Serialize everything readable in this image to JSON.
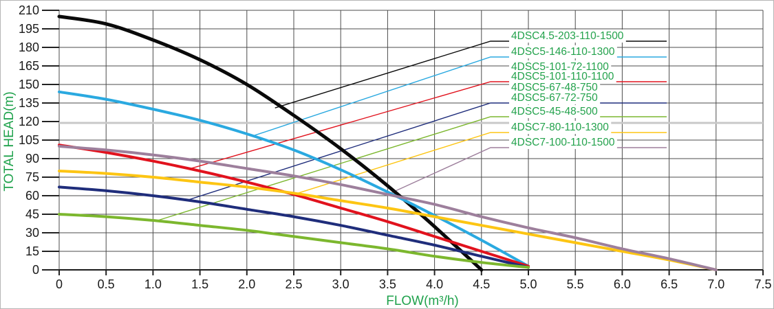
{
  "chart_data": {
    "type": "line",
    "xlabel": "FLOW(m³/h)",
    "ylabel": "TOTAL HEAD(m)",
    "axis_title_color": "#1fa24c",
    "xlim": [
      0,
      7.5
    ],
    "ylim": [
      0,
      210
    ],
    "grid": "on",
    "grid_color": "#4b4b4b",
    "x_tick_labels": [
      "0",
      "0.5",
      "1.0",
      "1.5",
      "2.0",
      "2.5",
      "3.0",
      "3.5",
      "4.0",
      "4.5",
      "5.0",
      "5.5",
      "6.0",
      "6.5",
      "7.0",
      "7.5"
    ],
    "y_tick_labels": [
      "0",
      "15",
      "30",
      "45",
      "60",
      "75",
      "90",
      "105",
      "120",
      "135",
      "150",
      "165",
      "180",
      "195",
      "210"
    ],
    "y_tick_step": 15,
    "x_tick_step": 0.5,
    "gray_line_head": 119,
    "gray_line_color": "#c8c8c8",
    "flow_step": 0.5,
    "series": [
      {
        "name": "4DSC4.5-203-110-1500",
        "color": "#0a0a0a",
        "width": 5,
        "draw": true,
        "heads": [
          205,
          199,
          186,
          170,
          150,
          125,
          98,
          68,
          35,
          0
        ]
      },
      {
        "name": "4DSC5-146-110-1300",
        "color": "#2aa9e0",
        "width": 4,
        "draw": true,
        "heads": [
          144,
          138,
          130,
          121,
          110,
          97,
          81,
          63,
          44,
          24,
          3
        ]
      },
      {
        "name": "4DSC5-101-72-1100",
        "color": "#e1121d",
        "width": 4,
        "draw": false,
        "heads": [
          101,
          95,
          88,
          80,
          71,
          61,
          50,
          39,
          27,
          15,
          3
        ]
      },
      {
        "name": "4DSC5-101-110-1100",
        "color": "#e1121d",
        "width": 4,
        "draw": true,
        "heads": [
          101,
          95,
          88,
          80,
          71,
          61,
          50,
          39,
          27,
          15,
          3
        ]
      },
      {
        "name": "4DSC5-67-48-750",
        "color": "#1f2d7b",
        "width": 4,
        "draw": false,
        "heads": [
          67,
          64,
          60,
          55,
          49,
          43,
          36,
          28,
          20,
          11,
          2
        ]
      },
      {
        "name": "4DSC5-67-72-750",
        "color": "#1f2d7b",
        "width": 4,
        "draw": true,
        "heads": [
          67,
          64,
          60,
          55,
          49,
          43,
          36,
          28,
          20,
          11,
          2
        ]
      },
      {
        "name": "4DSC5-45-48-500",
        "color": "#7cb72e",
        "width": 4,
        "draw": true,
        "heads": [
          45,
          43,
          40,
          36,
          32,
          27,
          22,
          17,
          11,
          6,
          2
        ]
      },
      {
        "name": "4DSC7-80-110-1300",
        "color": "#fdc513",
        "width": 4,
        "draw": true,
        "heads": [
          80,
          78,
          75,
          71,
          67,
          62,
          56,
          50,
          43,
          36,
          29,
          22,
          15,
          8,
          0
        ]
      },
      {
        "name": "4DSC7-100-110-1500",
        "color": "#9d7f9c",
        "width": 4,
        "draw": true,
        "heads": [
          100,
          97,
          93,
          88,
          82,
          76,
          69,
          61,
          53,
          43,
          34,
          26,
          17,
          9,
          0
        ]
      }
    ]
  },
  "legend": {
    "text_color": "#23a24c",
    "entries": [
      {
        "label": "4DSC4.5-203-110-1500",
        "color": "#0a0a0a",
        "leader": {
          "flow": 2.3,
          "head": 131
        }
      },
      {
        "label": "4DSC5-146-110-1300",
        "color": "#2aa9e0",
        "leader": {
          "flow": 2.05,
          "head": 108
        }
      },
      {
        "label": "4DSC5-101-72-1100",
        "color": "#e1121d",
        "leader": null
      },
      {
        "label": "4DSC5-101-110-1100",
        "color": "#e1121d",
        "leader": {
          "flow": 1.4,
          "head": 82
        }
      },
      {
        "label": "4DSC5-67-48-750",
        "color": "#1f2d7b",
        "leader": null
      },
      {
        "label": "4DSC5-67-72-750",
        "color": "#1f2d7b",
        "leader": {
          "flow": 1.35,
          "head": 56
        }
      },
      {
        "label": "4DSC5-45-48-500",
        "color": "#7cb72e",
        "leader": {
          "flow": 1.05,
          "head": 40
        }
      },
      {
        "label": "4DSC7-80-110-1300",
        "color": "#fdc513",
        "leader": {
          "flow": 2.5,
          "head": 61
        }
      },
      {
        "label": "4DSC7-100-110-1500",
        "color": "#9d7f9c",
        "leader": {
          "flow": 3.5,
          "head": 61
        }
      }
    ]
  }
}
